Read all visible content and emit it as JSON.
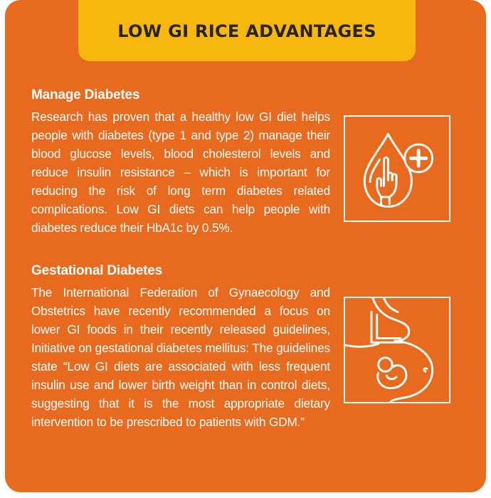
{
  "banner": {
    "title": "LOW GI RICE ADVANTAGES"
  },
  "sections": [
    {
      "heading": "Manage Diabetes",
      "body": "Research has proven that a healthy low GI diet helps people with diabetes (type 1 and type 2) manage their blood glucose levels, blood cholesterol levels and reduce insulin resistance – which is important for reducing the risk of long term diabetes related complications. Low GI diets can help people with diabetes reduce their HbA1c by 0.5%.",
      "icon": "blood-drop-hand-plus-icon"
    },
    {
      "heading": "Gestational Diabetes",
      "body": "The International Federation of Gynaecology and Obstetrics have recently recommended a focus on lower GI foods in their recently released guidelines, Initiative on gestational diabetes mellitus: The guidelines state “Low GI diets are associated with less frequent insulin use and lower birth weight than in control diets, suggesting that it is the most appropriate dietary intervention to be prescribed to patients with GDM.”",
      "icon": "pregnancy-icon"
    }
  ],
  "colors": {
    "background": "#E86A1E",
    "banner": "#F6B80F",
    "banner_text": "#2b2320",
    "text": "#ffffff"
  }
}
